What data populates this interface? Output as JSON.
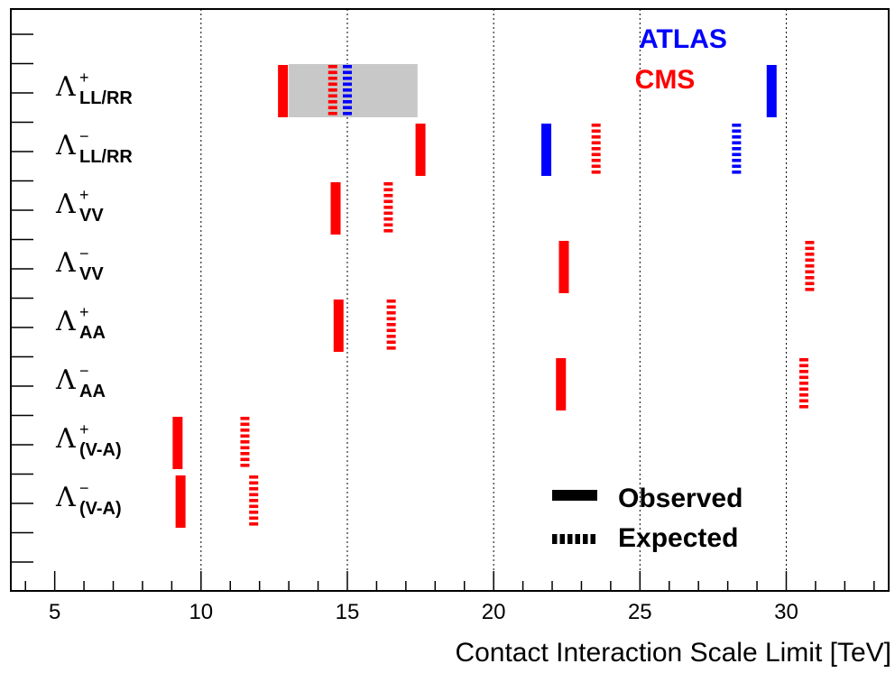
{
  "chart_data": {
    "type": "bar",
    "orientation": "horizontal-markers",
    "xlabel": "Contact Interaction Scale Limit [TeV]",
    "xlim": [
      3.5,
      33.5
    ],
    "xticks": [
      5,
      10,
      15,
      20,
      25,
      30
    ],
    "grid": "dotted vertical at major ticks",
    "experiments": [
      {
        "name": "ATLAS",
        "color": "#0000ff"
      },
      {
        "name": "CMS",
        "color": "#ff0000"
      }
    ],
    "legend_styles": [
      {
        "label": "Observed",
        "style": "solid"
      },
      {
        "label": "Expected",
        "style": "dashed"
      }
    ],
    "categories": [
      {
        "main": "Λ",
        "sup": "+",
        "sub": "LL/RR"
      },
      {
        "main": "Λ",
        "sup": "−",
        "sub": "LL/RR"
      },
      {
        "main": "Λ",
        "sup": "+",
        "sub": "VV"
      },
      {
        "main": "Λ",
        "sup": "−",
        "sub": "VV"
      },
      {
        "main": "Λ",
        "sup": "+",
        "sub": "AA"
      },
      {
        "main": "Λ",
        "sup": "−",
        "sub": "AA"
      },
      {
        "main": "Λ",
        "sup": "+",
        "sub": "(V-A)"
      },
      {
        "main": "Λ",
        "sup": "−",
        "sub": "(V-A)"
      }
    ],
    "expected_band": {
      "category_index": 0,
      "x_range": [
        13.0,
        17.4
      ]
    },
    "points": [
      {
        "cat": 0,
        "exp": "CMS",
        "type": "observed",
        "x": 12.8
      },
      {
        "cat": 0,
        "exp": "CMS",
        "type": "expected",
        "x": 14.5
      },
      {
        "cat": 0,
        "exp": "ATLAS",
        "type": "expected",
        "x": 15.0
      },
      {
        "cat": 0,
        "exp": "ATLAS",
        "type": "observed",
        "x": 29.5
      },
      {
        "cat": 1,
        "exp": "CMS",
        "type": "observed",
        "x": 17.5
      },
      {
        "cat": 1,
        "exp": "ATLAS",
        "type": "observed",
        "x": 21.8
      },
      {
        "cat": 1,
        "exp": "CMS",
        "type": "expected",
        "x": 23.5
      },
      {
        "cat": 1,
        "exp": "ATLAS",
        "type": "expected",
        "x": 28.3
      },
      {
        "cat": 2,
        "exp": "CMS",
        "type": "observed",
        "x": 14.6
      },
      {
        "cat": 2,
        "exp": "CMS",
        "type": "expected",
        "x": 16.4
      },
      {
        "cat": 3,
        "exp": "CMS",
        "type": "observed",
        "x": 22.4
      },
      {
        "cat": 3,
        "exp": "CMS",
        "type": "expected",
        "x": 30.8
      },
      {
        "cat": 4,
        "exp": "CMS",
        "type": "observed",
        "x": 14.7
      },
      {
        "cat": 4,
        "exp": "CMS",
        "type": "expected",
        "x": 16.5
      },
      {
        "cat": 5,
        "exp": "CMS",
        "type": "observed",
        "x": 22.3
      },
      {
        "cat": 5,
        "exp": "CMS",
        "type": "expected",
        "x": 30.6
      },
      {
        "cat": 6,
        "exp": "CMS",
        "type": "observed",
        "x": 9.2
      },
      {
        "cat": 6,
        "exp": "CMS",
        "type": "expected",
        "x": 11.5
      },
      {
        "cat": 7,
        "exp": "CMS",
        "type": "observed",
        "x": 9.3
      },
      {
        "cat": 7,
        "exp": "CMS",
        "type": "expected",
        "x": 11.8
      }
    ]
  }
}
